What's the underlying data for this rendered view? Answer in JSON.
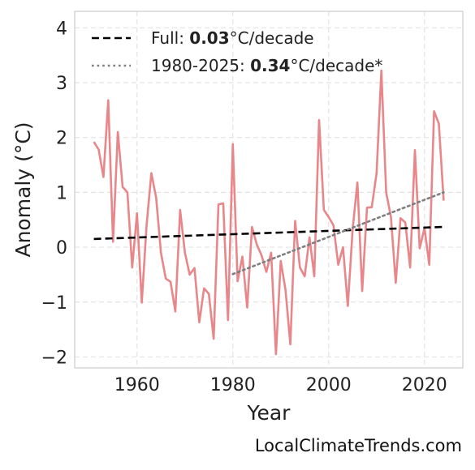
{
  "chart_data": {
    "type": "line",
    "xlabel": "Year",
    "ylabel": "Anomaly (°C)",
    "xlim": [
      1947,
      2028
    ],
    "ylim": [
      -2.2,
      4.3
    ],
    "xticks": [
      1960,
      1980,
      2000,
      2020
    ],
    "xtick_labels": [
      "1960",
      "1980",
      "2000",
      "2020"
    ],
    "yticks": [
      -2,
      -1,
      0,
      1,
      2,
      3,
      4
    ],
    "ytick_labels": [
      "−2",
      "−1",
      "0",
      "1",
      "2",
      "3",
      "4"
    ],
    "grid": true,
    "legend_position": "top-left",
    "series": [
      {
        "style": "solid",
        "color": "#e8868a",
        "x": [
          1951,
          1952,
          1953,
          1954,
          1955,
          1956,
          1957,
          1958,
          1959,
          1960,
          1961,
          1962,
          1963,
          1964,
          1965,
          1966,
          1967,
          1968,
          1969,
          1970,
          1971,
          1972,
          1973,
          1974,
          1975,
          1976,
          1977,
          1978,
          1979,
          1980,
          1981,
          1982,
          1983,
          1984,
          1985,
          1986,
          1987,
          1988,
          1989,
          1990,
          1991,
          1992,
          1993,
          1994,
          1995,
          1996,
          1997,
          1998,
          1999,
          2000,
          2001,
          2002,
          2003,
          2004,
          2005,
          2006,
          2007,
          2008,
          2009,
          2010,
          2011,
          2012,
          2013,
          2014,
          2015,
          2016,
          2017,
          2018,
          2019,
          2020,
          2021,
          2022,
          2023,
          2024
        ],
        "y": [
          1.92,
          1.78,
          1.28,
          2.68,
          0.1,
          2.1,
          1.1,
          1.0,
          -0.37,
          0.62,
          -1.01,
          0.4,
          1.35,
          0.9,
          -0.1,
          -0.57,
          -0.63,
          -1.17,
          0.68,
          -0.1,
          -0.5,
          -0.38,
          -1.37,
          -0.75,
          -0.85,
          -1.67,
          0.78,
          0.8,
          -1.33,
          1.88,
          -0.62,
          -0.17,
          -1.1,
          0.37,
          0.05,
          -0.15,
          -0.45,
          -0.1,
          -1.95,
          -0.25,
          -0.78,
          -1.77,
          0.48,
          -0.37,
          -0.53,
          0.18,
          -0.53,
          2.32,
          0.68,
          0.55,
          0.4,
          -0.32,
          0.0,
          -1.07,
          0.32,
          1.18,
          -0.8,
          0.72,
          0.73,
          1.35,
          3.22,
          1.0,
          0.55,
          -0.65,
          0.53,
          0.45,
          -0.37,
          1.77,
          -0.02,
          0.35,
          -0.32,
          2.48,
          2.25,
          0.85
        ]
      },
      {
        "name": "Full: 0.03°C/decade",
        "style": "dashed",
        "color": "#000000",
        "x": [
          1951,
          2024
        ],
        "y": [
          0.15,
          0.37
        ]
      },
      {
        "name": "1980-2025: 0.34°C/decade*",
        "style": "dotted",
        "color": "#7f7f7f",
        "x": [
          1980,
          2024
        ],
        "y": [
          -0.49,
          1.0
        ]
      }
    ],
    "legend": [
      {
        "prefix": "Full: ",
        "value": "0.03",
        "suffix": "°C/decade"
      },
      {
        "prefix": "1980-2025: ",
        "value": "0.34",
        "suffix": "°C/decade*"
      }
    ]
  },
  "footer": {
    "source": "LocalClimateTrends.com"
  }
}
